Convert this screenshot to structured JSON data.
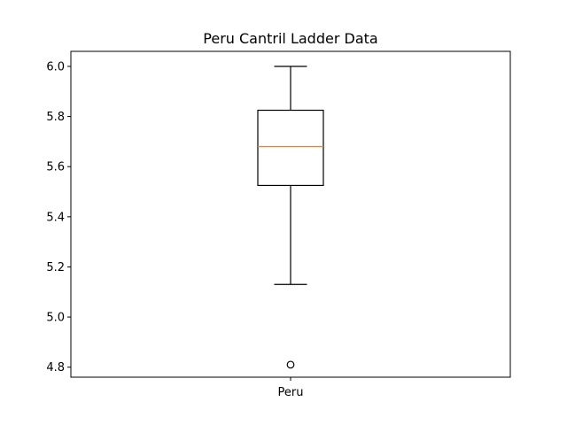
{
  "chart_data": {
    "type": "box",
    "title": "Peru Cantril Ladder Data",
    "xlabel": "",
    "ylabel": "",
    "categories": [
      "Peru"
    ],
    "boxes": [
      {
        "label": "Peru",
        "whisker_low": 5.13,
        "q1": 5.525,
        "median": 5.68,
        "q3": 5.825,
        "whisker_high": 6.0,
        "outliers": [
          4.81
        ]
      }
    ],
    "yticks": [
      4.8,
      5.0,
      5.2,
      5.4,
      5.6,
      5.8,
      6.0
    ],
    "ytick_labels": [
      "4.8",
      "5.0",
      "5.2",
      "5.4",
      "5.6",
      "5.8",
      "6.0"
    ],
    "ylim": [
      4.76,
      6.06
    ],
    "grid": false,
    "colors": {
      "box": "#000000",
      "median": "#ff7f0e",
      "outlier": "#000000"
    }
  }
}
